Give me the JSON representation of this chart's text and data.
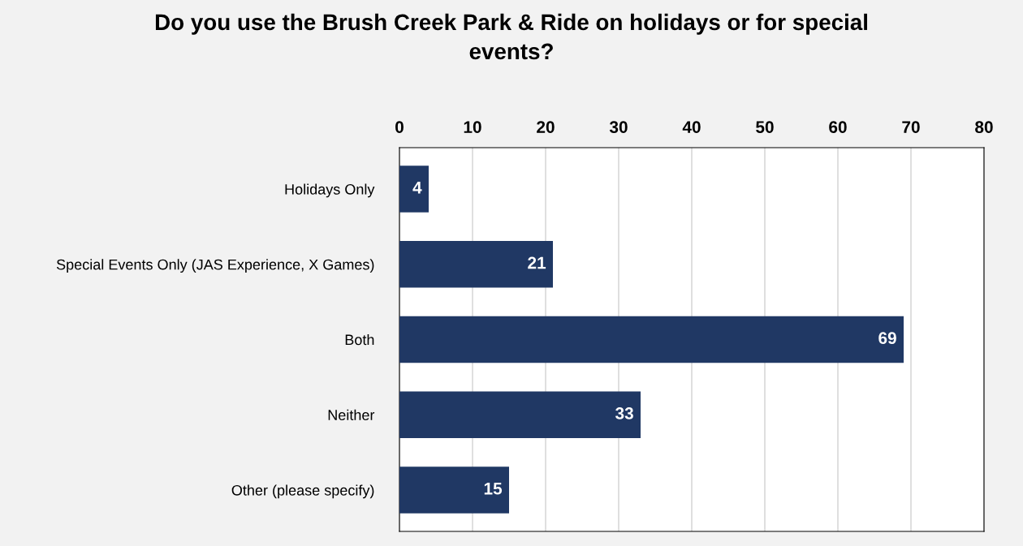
{
  "chart_data": {
    "type": "bar",
    "orientation": "horizontal",
    "title": "Do you use the Brush Creek Park & Ride on holidays or for special events?",
    "categories": [
      "Holidays Only",
      "Special Events Only (JAS Experience, X Games)",
      "Both",
      "Neither",
      "Other (please specify)"
    ],
    "values": [
      4,
      21,
      69,
      33,
      15
    ],
    "color": "#203864",
    "xlim": [
      0,
      80
    ],
    "xticks": [
      0,
      10,
      20,
      30,
      40,
      50,
      60,
      70,
      80
    ],
    "grid": "x",
    "data_labels": true
  }
}
